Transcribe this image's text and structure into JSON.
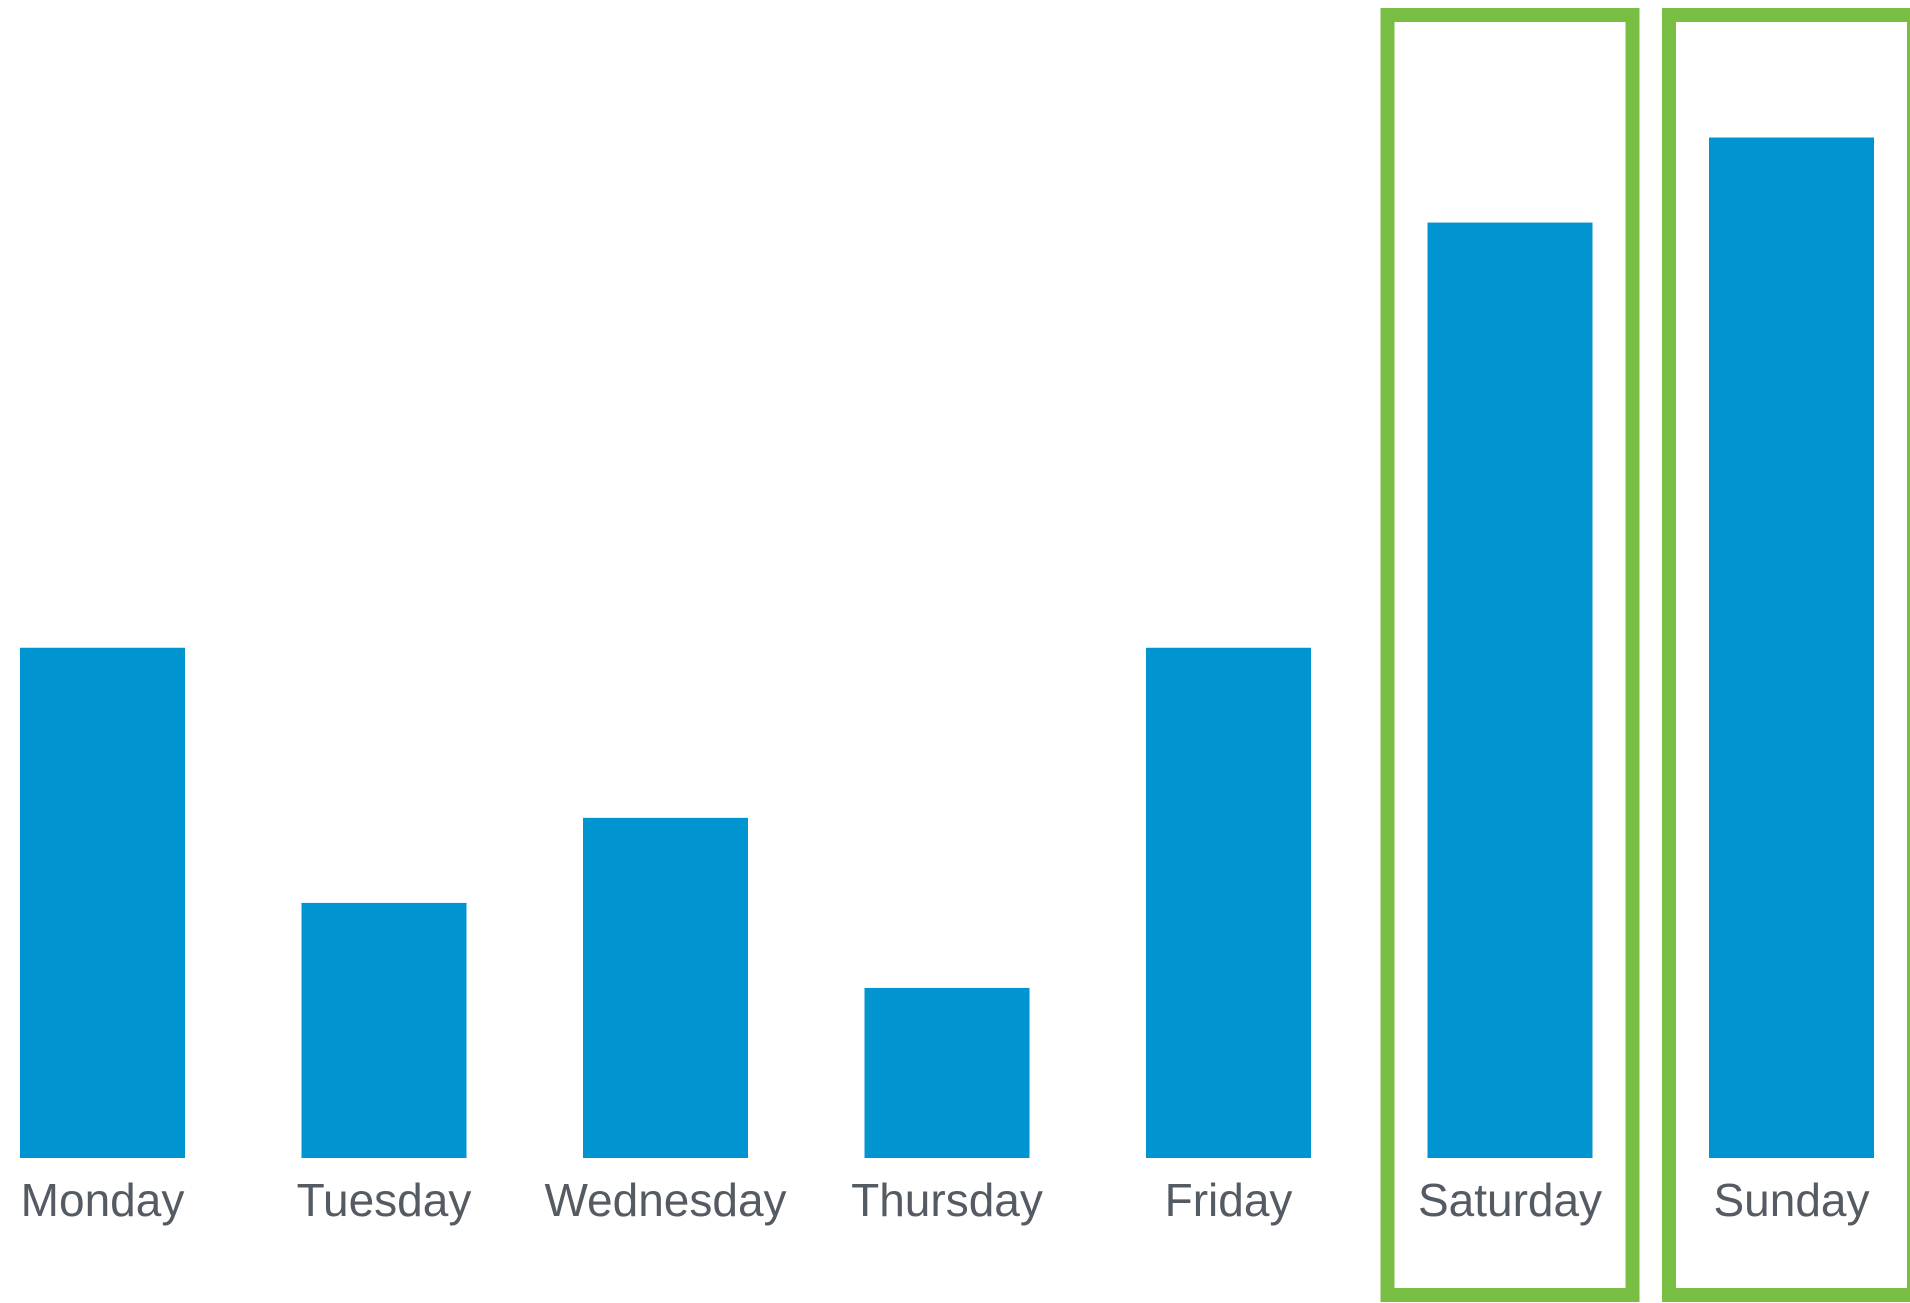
{
  "chart_data": {
    "type": "bar",
    "categories": [
      "Monday",
      "Tuesday",
      "Wednesday",
      "Thursday",
      "Friday",
      "Saturday",
      "Sunday"
    ],
    "values": [
      6,
      3,
      4,
      2,
      6,
      11,
      12
    ],
    "title": "",
    "xlabel": "",
    "ylabel": "",
    "ylim": [
      0,
      12.5
    ],
    "highlighted_categories": [
      "Saturday",
      "Sunday"
    ],
    "grid": false,
    "axes_visible": false
  },
  "colors": {
    "bar": "#0094D0",
    "highlight": "#78BE43",
    "label": "#555B63",
    "background": "#FFFFFF"
  }
}
